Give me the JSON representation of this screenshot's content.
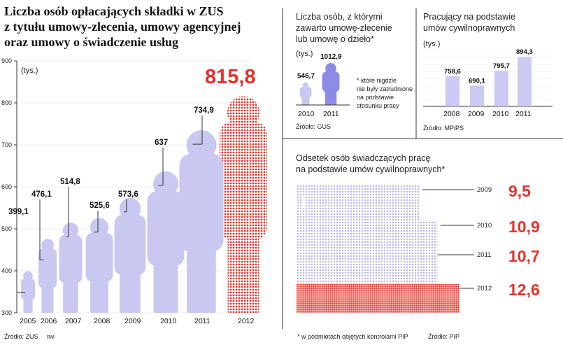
{
  "chart_data": [
    {
      "type": "bar",
      "title": "Liczba osób opłacających składki w ZUS z tytułu umowy-zlecenia, umowy agencyjnej oraz umowy o świadczenie usług",
      "ylabel": "(tys.)",
      "ylim": [
        300,
        900
      ],
      "yticks": [
        "300",
        "400",
        "500",
        "600",
        "700",
        "800",
        "900"
      ],
      "categories": [
        "2005",
        "2006",
        "2007",
        "2008",
        "2009",
        "2010",
        "2011",
        "2012"
      ],
      "values": [
        399.1,
        476.1,
        514.8,
        525.6,
        573.6,
        637,
        734.9,
        815.8
      ],
      "value_labels": [
        "399,1",
        "476,1",
        "514,8",
        "525,6",
        "573,6",
        "637",
        "734,9",
        "815,8"
      ],
      "highlight_index": 7,
      "source": "Źródło: ZUS",
      "credit": "RM"
    },
    {
      "type": "bar",
      "title": "Liczba osób, z którymi zawarto umowę-zlecenie lub umowę o dzieło*",
      "ylabel": "(tys.)",
      "categories": [
        "2010",
        "2011"
      ],
      "values": [
        546.7,
        1012.9
      ],
      "value_labels": [
        "546,7",
        "1012,9"
      ],
      "annotation": "* które nigdzie nie były zatrudnione na podstawie stosunku pracy",
      "source": "Źródło: GUS"
    },
    {
      "type": "bar",
      "title": "Pracujący na podstawie umów cywilnoprawnych",
      "ylabel": "(tys.)",
      "categories": [
        "2008",
        "2009",
        "2010",
        "2011"
      ],
      "values": [
        758.6,
        690.1,
        795.7,
        894.3
      ],
      "value_labels": [
        "758,6",
        "690,1",
        "795,7",
        "894,3"
      ],
      "source": "Źródło: MPiPS"
    },
    {
      "type": "bar",
      "title": "Odsetek osób świadczących pracę na podstawie umów cywilnoprawnych*",
      "categories": [
        "2009",
        "2010",
        "2011",
        "2012"
      ],
      "values": [
        9.5,
        10.9,
        10.7,
        12.6
      ],
      "value_labels": [
        "9,5",
        "10,9",
        "10,7",
        "12,6"
      ],
      "footnote": "* w podmiotach objętych kontrolami PIP",
      "source": "Źródło: PIP"
    }
  ],
  "colors": {
    "accent": "#e3322b",
    "figure": "#c8c8f0",
    "bar": "#cacaf2",
    "dark_figure": "#8c8ce6",
    "dots": "#b4b4e6",
    "axis": "#333333"
  }
}
